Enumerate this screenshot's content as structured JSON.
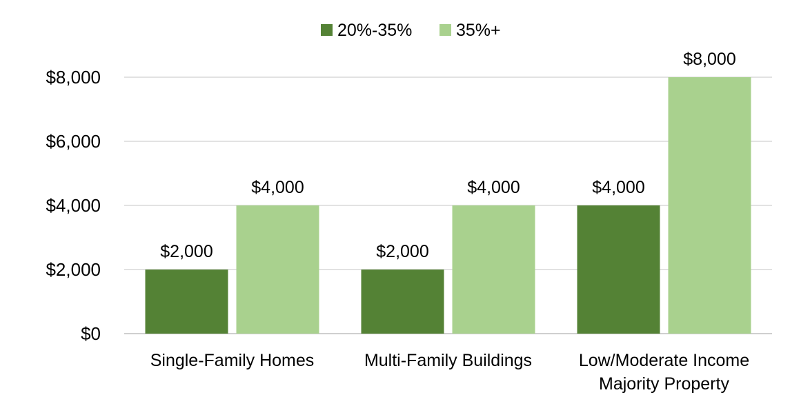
{
  "chart_data": {
    "type": "bar",
    "categories": [
      [
        "Single-Family Homes"
      ],
      [
        "Multi-Family Buildings"
      ],
      [
        "Low/Moderate Income",
        "Majority Property"
      ]
    ],
    "series": [
      {
        "name": "20%-35%",
        "color": "#548235",
        "values": [
          2000,
          2000,
          4000
        ]
      },
      {
        "name": "35%+",
        "color": "#A9D18E",
        "values": [
          4000,
          4000,
          8000
        ]
      }
    ],
    "y_ticks": [
      "$0",
      "$2,000",
      "$4,000",
      "$6,000",
      "$8,000"
    ],
    "data_labels": [
      [
        "$2,000",
        "$2,000",
        "$4,000"
      ],
      [
        "$4,000",
        "$4,000",
        "$8,000"
      ]
    ],
    "ylim": [
      0,
      8000
    ],
    "grid": true,
    "legend_position": "top"
  }
}
